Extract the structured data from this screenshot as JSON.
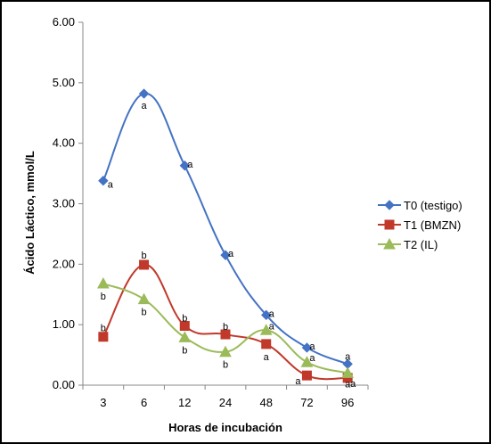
{
  "chart_data": {
    "type": "line",
    "title": "",
    "xlabel": "Horas de incubación",
    "ylabel": "Ácido Láctico, mmol/L",
    "categories": [
      "3",
      "6",
      "12",
      "24",
      "48",
      "72",
      "96"
    ],
    "ylim": [
      0,
      6
    ],
    "y_ticks": [
      "0.00",
      "1.00",
      "2.00",
      "3.00",
      "4.00",
      "5.00",
      "6.00"
    ],
    "grid": false,
    "legend_position": "right",
    "series": [
      {
        "name": "T0 (testigo)",
        "color": "#4472C4",
        "marker": "diamond",
        "values": [
          3.38,
          4.82,
          3.63,
          2.15,
          1.16,
          0.62,
          0.35
        ],
        "labels": [
          "a",
          "a",
          "a",
          "a",
          "a",
          "a",
          "a"
        ]
      },
      {
        "name": "T1 (BMZN)",
        "color": "#C0392B",
        "marker": "square",
        "values": [
          0.8,
          1.99,
          0.98,
          0.84,
          0.68,
          0.16,
          0.12
        ],
        "labels": [
          "b",
          "b",
          "b",
          "b",
          "a",
          "a",
          "a"
        ]
      },
      {
        "name": "T2 (IL)",
        "color": "#9BBB59",
        "marker": "triangle",
        "values": [
          1.68,
          1.42,
          0.79,
          0.55,
          0.91,
          0.38,
          0.2
        ],
        "labels": [
          "b",
          "b",
          "b",
          "b",
          "a",
          "a",
          "a"
        ]
      }
    ]
  }
}
